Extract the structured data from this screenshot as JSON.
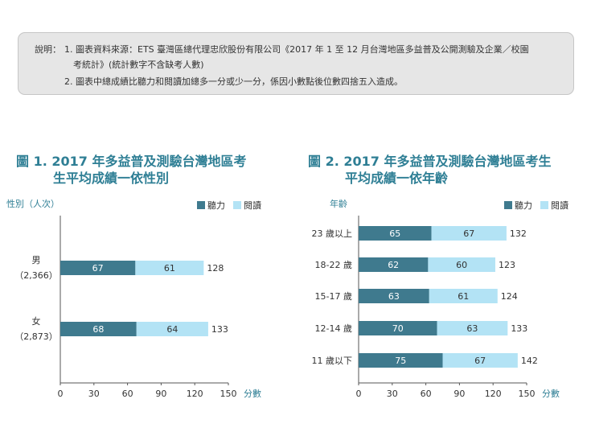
{
  "note": {
    "label": "說明：",
    "item1_line1": "1. 圖表資料來源：ETS 臺灣區總代理忠欣股份有限公司《2017 年 1 至 12 月台灣地區多益普及公開測驗及企業／校園",
    "item1_line2": "考統計》(統計數字不含缺考人數)",
    "item2": "2. 圖表中總成績比聽力和閱讀加總多一分或少一分，係因小數點後位數四捨五入造成。"
  },
  "colors": {
    "listening": "#3f7a8e",
    "reading": "#b3e3f5",
    "title": "#2f7f95",
    "axis": "#555555"
  },
  "chart_data": [
    {
      "type": "bar",
      "orientation": "horizontal",
      "stacked": true,
      "title_line1": "圖 1. 2017 年多益普及測驗台灣地區考",
      "title_line2": "生平均成績一依性別",
      "ylabel": "性別（人次）",
      "xlabel": "分數",
      "xlim": [
        0,
        150
      ],
      "xticks": [
        "0",
        "30",
        "60",
        "90",
        "120",
        "150"
      ],
      "legend": [
        "聽力",
        "閱讀"
      ],
      "legend_position": "top-right",
      "categories": [
        {
          "name": "男",
          "sub": "（2,366）"
        },
        {
          "name": "女",
          "sub": "（2,873）"
        }
      ],
      "series": [
        {
          "name": "聽力",
          "values": [
            67,
            68
          ]
        },
        {
          "name": "閱讀",
          "values": [
            61,
            64
          ]
        }
      ],
      "totals": [
        128,
        133
      ]
    },
    {
      "type": "bar",
      "orientation": "horizontal",
      "stacked": true,
      "title_line1": "圖 2. 2017 年多益普及測驗台灣地區考生",
      "title_line2": "平均成績一依年齡",
      "ylabel": "年齡",
      "xlabel": "分數",
      "xlim": [
        0,
        150
      ],
      "xticks": [
        "0",
        "30",
        "60",
        "90",
        "120",
        "150"
      ],
      "legend": [
        "聽力",
        "閱讀"
      ],
      "legend_position": "top-right",
      "categories": [
        {
          "name": "23 歲以上",
          "sub": ""
        },
        {
          "name": "18-22 歲",
          "sub": ""
        },
        {
          "name": "15-17 歲",
          "sub": ""
        },
        {
          "name": "12-14 歲",
          "sub": ""
        },
        {
          "name": "11 歲以下",
          "sub": ""
        }
      ],
      "series": [
        {
          "name": "聽力",
          "values": [
            65,
            62,
            63,
            70,
            75
          ]
        },
        {
          "name": "閱讀",
          "values": [
            67,
            60,
            61,
            63,
            67
          ]
        }
      ],
      "totals": [
        132,
        123,
        124,
        133,
        142
      ]
    }
  ]
}
